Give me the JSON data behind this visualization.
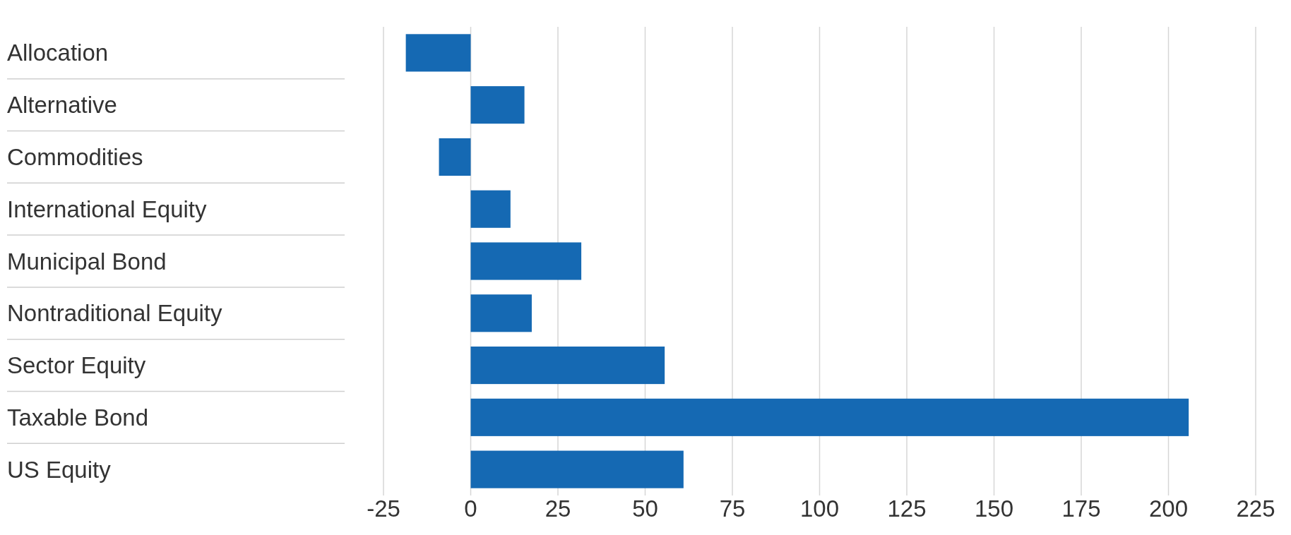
{
  "chart_data": {
    "type": "bar",
    "orientation": "horizontal",
    "categories": [
      "Allocation",
      "Alternative",
      "Commodities",
      "International Equity",
      "Municipal Bond",
      "Nontraditional Equity",
      "Sector Equity",
      "Taxable Bond",
      "US Equity"
    ],
    "values": [
      -18.6,
      15.4,
      -9.1,
      11.4,
      31.7,
      17.5,
      55.6,
      205.8,
      61.0
    ],
    "color": "#1569b3",
    "xlim": [
      -25,
      225
    ],
    "xticks": [
      -25,
      0,
      25,
      50,
      75,
      100,
      125,
      150,
      175,
      200,
      225
    ],
    "grid": "x"
  }
}
